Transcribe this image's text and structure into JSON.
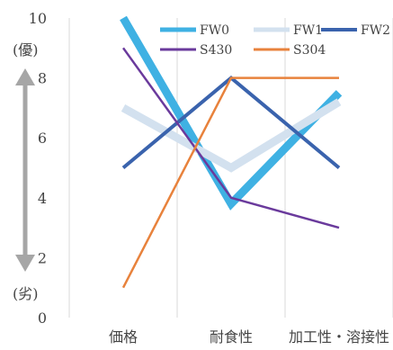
{
  "chart_data": {
    "type": "line",
    "categories": [
      "価格",
      "耐食性",
      "加工性・溶接性"
    ],
    "ylim": [
      0,
      10
    ],
    "yticks": [
      0,
      2,
      4,
      6,
      8,
      10
    ],
    "grid": "vertical category separators",
    "legend_position": "top-right",
    "y_top_annotation": "(優)",
    "y_bottom_annotation": "(劣)",
    "series": [
      {
        "name": "FW0",
        "values": [
          10,
          3.8,
          7.5
        ],
        "color": "#3fb1e3",
        "weight": "heavy"
      },
      {
        "name": "FW1",
        "values": [
          7,
          5,
          7.2
        ],
        "color": "#d3e1ef",
        "weight": "heavy"
      },
      {
        "name": "FW2",
        "values": [
          5,
          8,
          5
        ],
        "color": "#3a63ad",
        "weight": "medium"
      },
      {
        "name": "S430",
        "values": [
          9,
          4,
          3
        ],
        "color": "#6a3a9c",
        "weight": "thin"
      },
      {
        "name": "S304",
        "values": [
          1,
          8,
          8
        ],
        "color": "#e8823c",
        "weight": "thin"
      }
    ]
  },
  "arrow_color": "#a6a6a6"
}
